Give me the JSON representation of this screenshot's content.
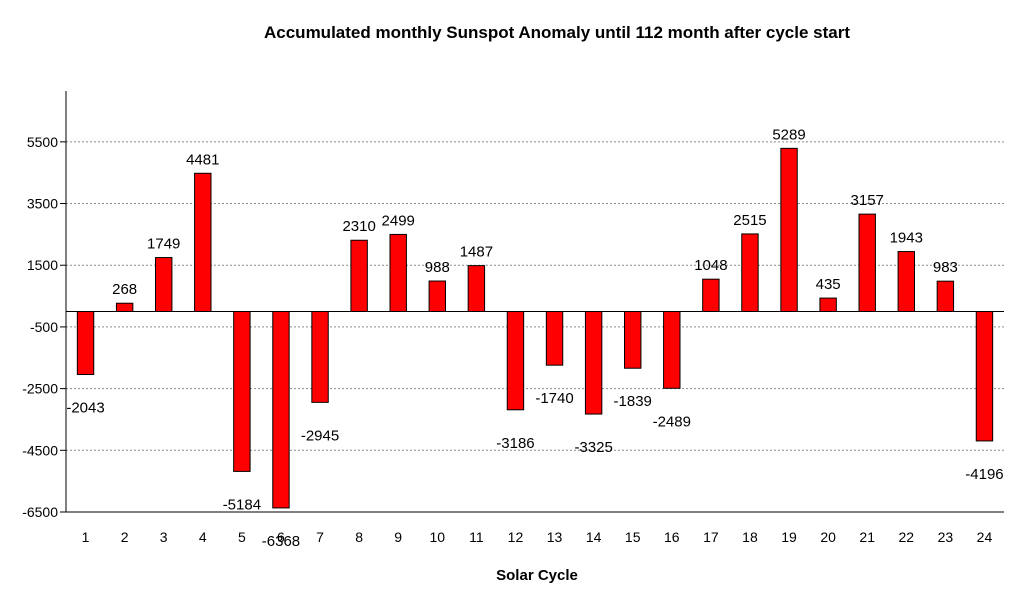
{
  "chart_data": {
    "type": "bar",
    "title": "Accumulated monthly Sunspot Anomaly until 112 month after cycle start",
    "xlabel": "Solar Cycle",
    "ylabel": "",
    "ylim": [
      -6500,
      6500
    ],
    "yticks": [
      5500,
      3500,
      1500,
      -500,
      -2500,
      -4500,
      -6500
    ],
    "grid": "horizontal dashed",
    "legend": "none",
    "bar_color": "#ff0000",
    "bar_stroke": "#000000",
    "categories": [
      "1",
      "2",
      "3",
      "4",
      "5",
      "6",
      "7",
      "8",
      "9",
      "10",
      "11",
      "12",
      "13",
      "14",
      "15",
      "16",
      "17",
      "18",
      "19",
      "20",
      "21",
      "22",
      "23",
      "24"
    ],
    "values": [
      -2043,
      268,
      1749,
      4481,
      -5184,
      -6368,
      -2945,
      2310,
      2499,
      988,
      1487,
      -3186,
      -1740,
      -3325,
      -1839,
      -2489,
      1048,
      2515,
      5289,
      435,
      3157,
      1943,
      983,
      -4196
    ],
    "labels": [
      "-2043",
      "268",
      "1749",
      "4481",
      "-5184",
      "-6368",
      "-2945",
      "2310",
      "2499",
      "988",
      "1487",
      "-3186",
      "-1740",
      "-3325",
      "-1839",
      "-2489",
      "1048",
      "2515",
      "5289",
      "435",
      "3157",
      "1943",
      "983",
      "-4196"
    ]
  }
}
